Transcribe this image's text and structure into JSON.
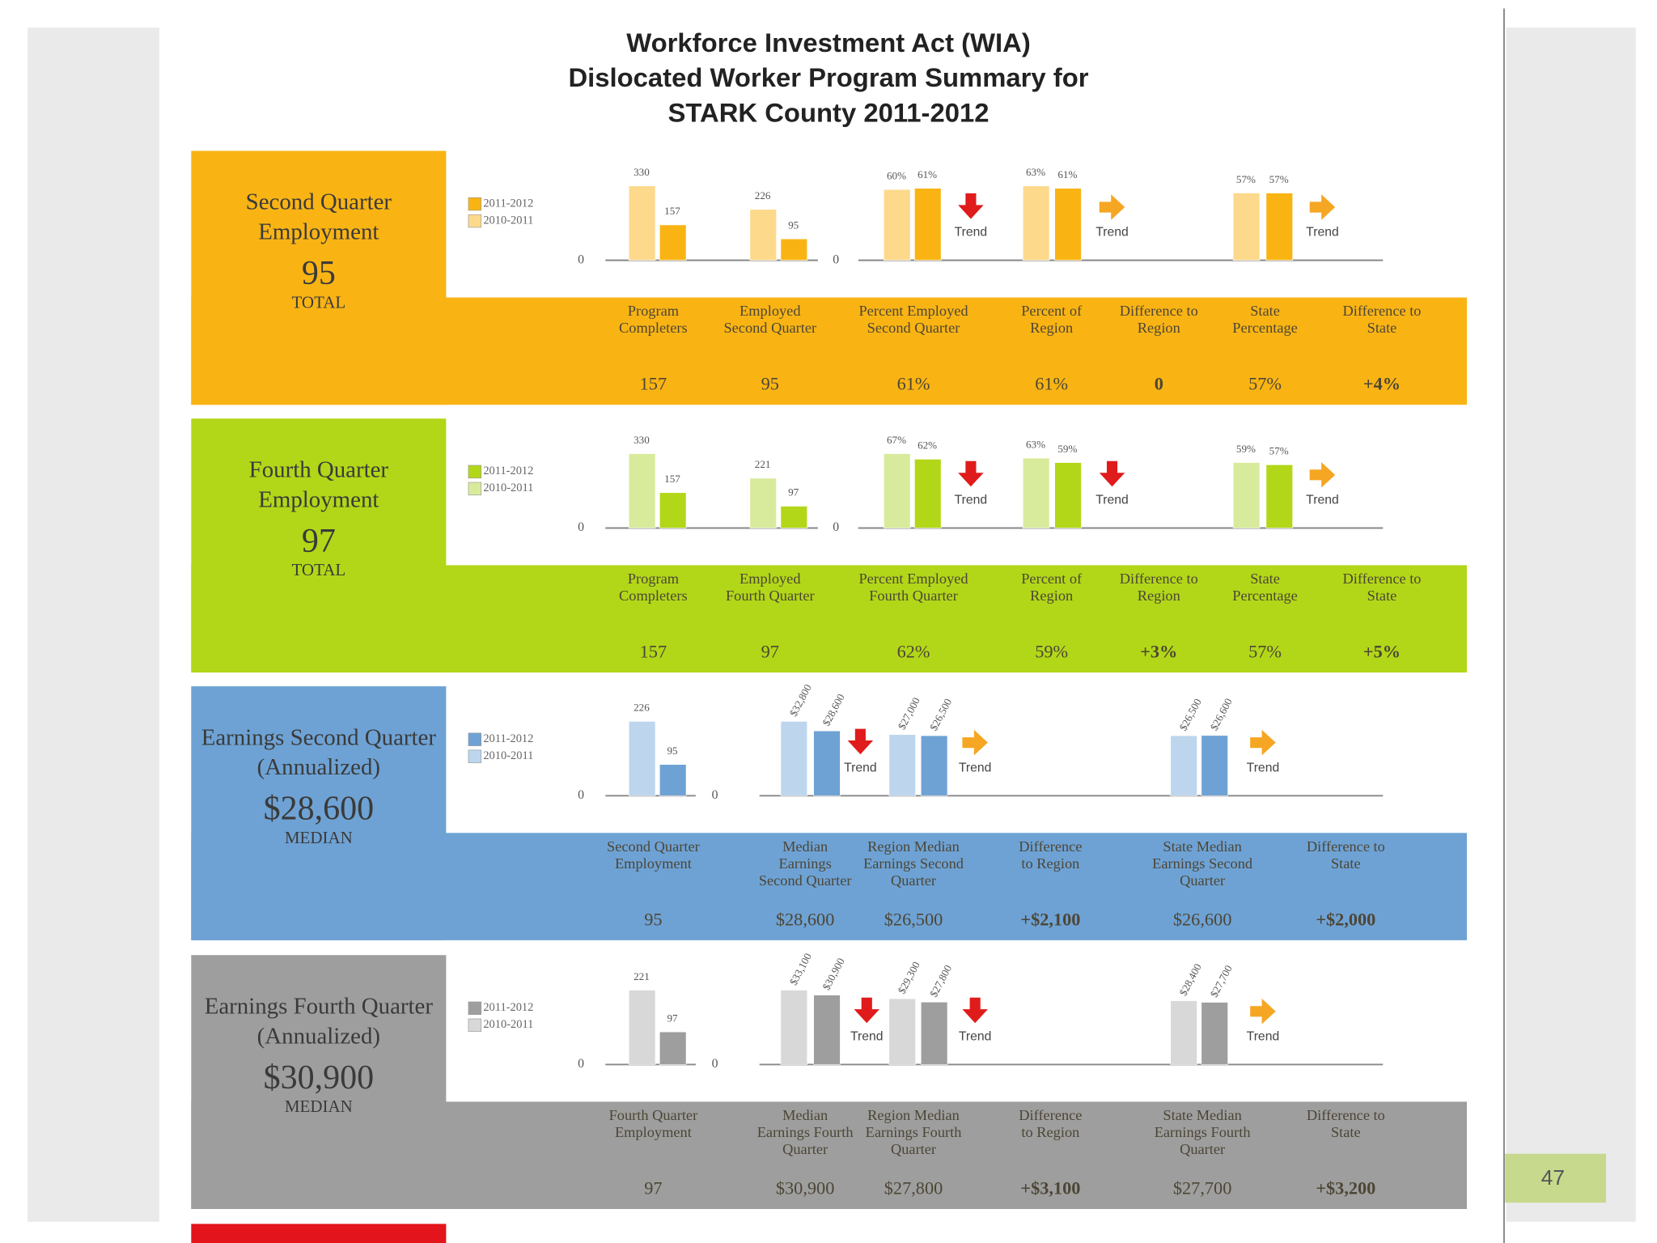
{
  "title": [
    "Workforce Investment Act (WIA)",
    "Dislocated Worker Program Summary for",
    "STARK County 2011-2012"
  ],
  "legend": [
    "2011-2012",
    "2010-2011"
  ],
  "trend_label": "Trend",
  "page_number": "47",
  "sections": [
    {
      "name": [
        "Second Quarter",
        "Employment"
      ],
      "total": "95",
      "total_label": "TOTAL",
      "color": "#f9b414",
      "light_color": "#fdd98c",
      "charts": [
        {
          "ticks": [
            0
          ],
          "groups": [
            {
              "values": [
                330,
                157
              ]
            },
            {
              "values": [
                226,
                95
              ]
            }
          ]
        },
        {
          "ticks": [
            0
          ],
          "groups": [
            {
              "values": [
                60,
                61
              ],
              "value_labels": [
                "60%",
                "61%"
              ],
              "trend": "down"
            },
            {
              "values": [
                63,
                61
              ],
              "value_labels": [
                "63%",
                "61%"
              ],
              "trend": "right"
            },
            {
              "values": [
                57,
                57
              ],
              "value_labels": [
                "57%",
                "57%"
              ],
              "trend": "right"
            }
          ]
        }
      ],
      "metrics": [
        {
          "label": [
            "Program",
            "Completers"
          ],
          "value": "157"
        },
        {
          "label": [
            "Employed",
            "Second Quarter"
          ],
          "value": "95"
        },
        {
          "label": [
            "Percent Employed",
            "Second Quarter"
          ],
          "value": "61%"
        },
        {
          "label": [
            "Percent of",
            "Region"
          ],
          "value": "61%"
        },
        {
          "label": [
            "Difference to",
            "Region"
          ],
          "value": "0"
        },
        {
          "label": [
            "State",
            "Percentage"
          ],
          "value": "57%"
        },
        {
          "label": [
            "Difference to",
            "State"
          ],
          "value": "+4%"
        }
      ]
    },
    {
      "name": [
        "Fourth Quarter",
        "Employment"
      ],
      "total": "97",
      "total_label": "TOTAL",
      "color": "#b2d718",
      "light_color": "#d8eb9c",
      "charts": [
        {
          "ticks": [
            0
          ],
          "groups": [
            {
              "values": [
                330,
                157
              ]
            },
            {
              "values": [
                221,
                97
              ]
            }
          ]
        },
        {
          "ticks": [
            0
          ],
          "groups": [
            {
              "values": [
                67,
                62
              ],
              "value_labels": [
                "67%",
                "62%"
              ],
              "trend": "down"
            },
            {
              "values": [
                63,
                59
              ],
              "value_labels": [
                "63%",
                "59%"
              ],
              "trend": "down"
            },
            {
              "values": [
                59,
                57
              ],
              "value_labels": [
                "59%",
                "57%"
              ],
              "trend": "right"
            }
          ]
        }
      ],
      "metrics": [
        {
          "label": [
            "Program",
            "Completers"
          ],
          "value": "157"
        },
        {
          "label": [
            "Employed",
            "Fourth Quarter"
          ],
          "value": "97"
        },
        {
          "label": [
            "Percent Employed",
            "Fourth Quarter"
          ],
          "value": "62%"
        },
        {
          "label": [
            "Percent of",
            "Region"
          ],
          "value": "59%"
        },
        {
          "label": [
            "Difference to",
            "Region"
          ],
          "value": "+3%"
        },
        {
          "label": [
            "State",
            "Percentage"
          ],
          "value": "57%"
        },
        {
          "label": [
            "Difference to",
            "State"
          ],
          "value": "+5%"
        }
      ]
    },
    {
      "name": [
        "Earnings Second Quarter",
        "(Annualized)"
      ],
      "total": "$28,600",
      "total_label": "MEDIAN",
      "color": "#6ea2d4",
      "light_color": "#bdd6ed",
      "charts": [
        {
          "ticks": [
            0
          ],
          "groups": [
            {
              "values": [
                226,
                95
              ]
            }
          ]
        },
        {
          "ticks": [
            0
          ],
          "groups": [
            {
              "values": [
                32800,
                28600
              ],
              "value_labels": [
                "$32,800",
                "$28,600"
              ],
              "trend": "down"
            },
            {
              "values": [
                27000,
                26500
              ],
              "value_labels": [
                "$27,000",
                "$26,500"
              ],
              "trend": "right"
            },
            {
              "values": [
                26500,
                26600
              ],
              "value_labels": [
                "$26,500",
                "$26,600"
              ],
              "trend": "right"
            }
          ]
        }
      ],
      "metrics": [
        {
          "label": [
            "Second Quarter",
            "Employment"
          ],
          "value": "95"
        },
        {
          "label": [
            "Median",
            "Earnings",
            "Second Quarter"
          ],
          "value": "$28,600"
        },
        {
          "label": [
            "Region Median",
            "Earnings Second",
            "Quarter"
          ],
          "value": "$26,500"
        },
        {
          "label": [
            "Difference",
            "to Region"
          ],
          "value": "+$2,100"
        },
        {
          "label": [
            "State Median",
            "Earnings Second",
            "Quarter"
          ],
          "value": "$26,600"
        },
        {
          "label": [
            "Difference to",
            "State"
          ],
          "value": "+$2,000"
        }
      ]
    },
    {
      "name": [
        "Earnings Fourth Quarter",
        "(Annualized)"
      ],
      "total": "$30,900",
      "total_label": "MEDIAN",
      "color": "#9e9e9e",
      "light_color": "#d8d8d8",
      "charts": [
        {
          "ticks": [
            0
          ],
          "groups": [
            {
              "values": [
                221,
                97
              ]
            }
          ]
        },
        {
          "ticks": [
            0
          ],
          "groups": [
            {
              "values": [
                33100,
                30900
              ],
              "value_labels": [
                "$33,100",
                "$30,900"
              ],
              "trend": "down"
            },
            {
              "values": [
                29300,
                27800
              ],
              "value_labels": [
                "$29,300",
                "$27,800"
              ],
              "trend": "down"
            },
            {
              "values": [
                28400,
                27700
              ],
              "value_labels": [
                "$28,400",
                "$27,700"
              ],
              "trend": "right"
            }
          ]
        }
      ],
      "metrics": [
        {
          "label": [
            "Fourth Quarter",
            "Employment"
          ],
          "value": "97"
        },
        {
          "label": [
            "Median",
            "Earnings Fourth",
            "Quarter"
          ],
          "value": "$30,900"
        },
        {
          "label": [
            "Region Median",
            "Earnings Fourth",
            "Quarter"
          ],
          "value": "$27,800"
        },
        {
          "label": [
            "Difference",
            "to Region"
          ],
          "value": "+$3,100"
        },
        {
          "label": [
            "State Median",
            "Earnings Fourth",
            "Quarter"
          ],
          "value": "$27,700"
        },
        {
          "label": [
            "Difference to",
            "State"
          ],
          "value": "+$3,200"
        }
      ]
    }
  ]
}
